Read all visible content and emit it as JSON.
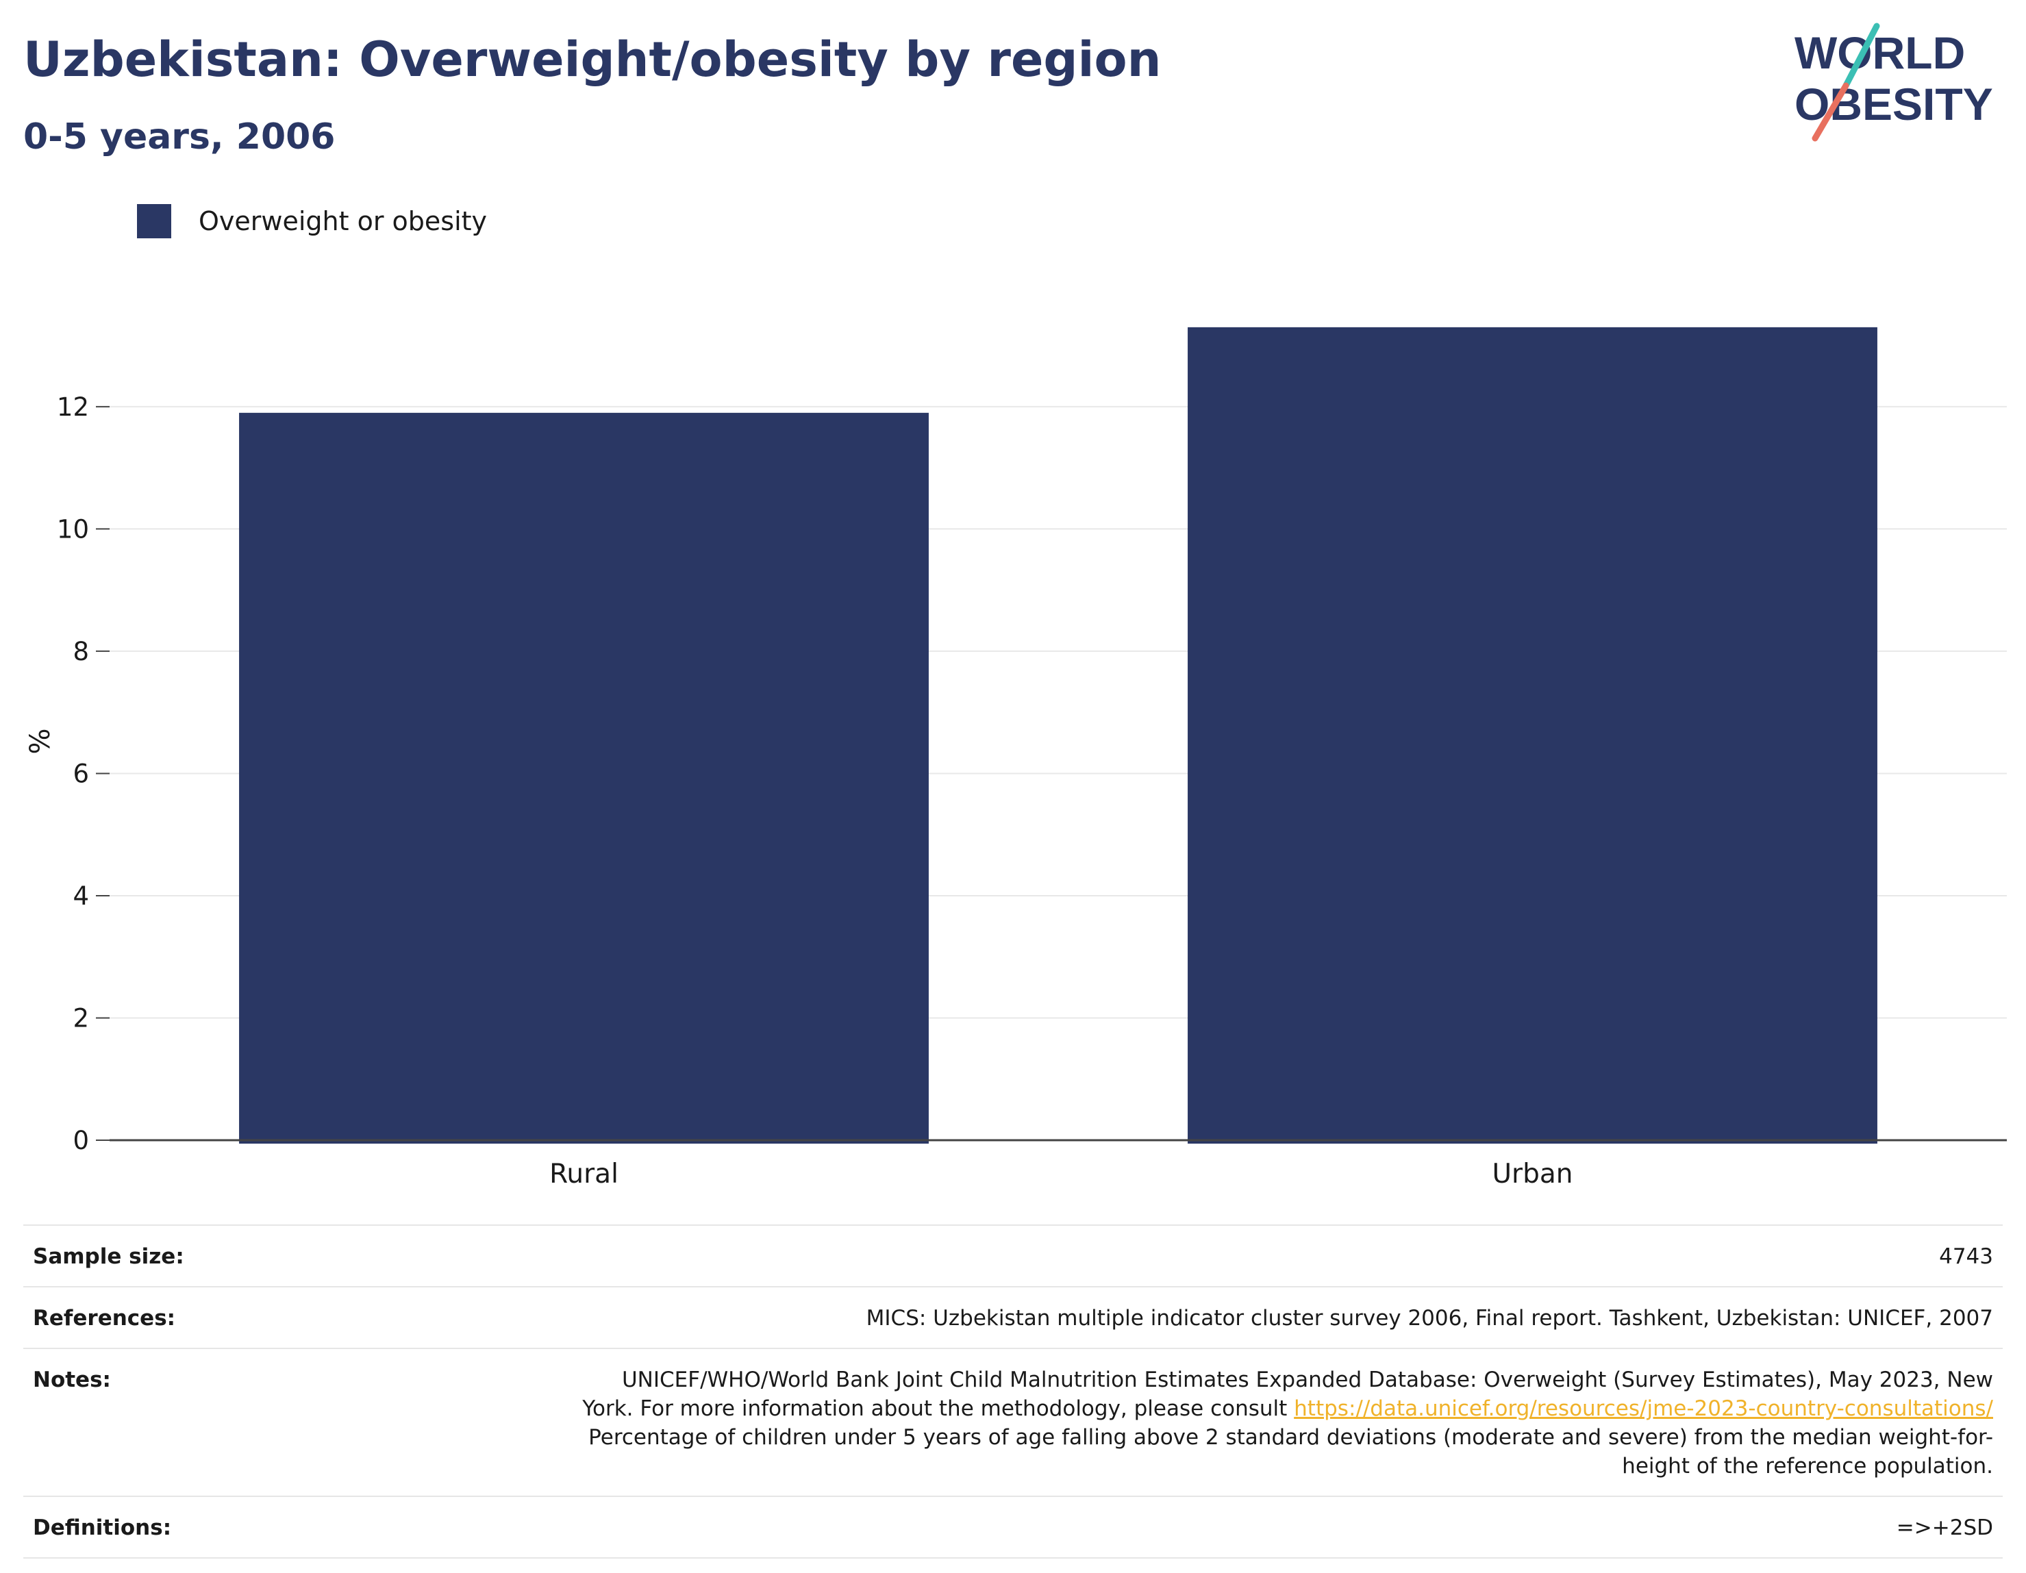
{
  "header": {
    "title": "Uzbekistan: Overweight/obesity by region",
    "subtitle": "0-5 years, 2006"
  },
  "logo": {
    "line1": "WORLD",
    "line2": "OBESITY",
    "colors": {
      "text": "#2a3764",
      "slash_top": "#3bbfb4",
      "slash_bottom": "#e8705f"
    }
  },
  "legend": {
    "items": [
      {
        "label": "Overweight or obesity",
        "color": "#2a3764"
      }
    ]
  },
  "chart_data": {
    "type": "bar",
    "categories": [
      "Rural",
      "Urban"
    ],
    "series": [
      {
        "name": "Overweight or obesity",
        "values": [
          11.9,
          13.3
        ],
        "color": "#2a3764"
      }
    ],
    "ylabel": "%",
    "ylim": [
      0,
      13.5
    ],
    "yticks": [
      0,
      2,
      4,
      6,
      8,
      10,
      12
    ],
    "grid": true,
    "legend_position": "top-left"
  },
  "table": {
    "sample_size": {
      "label": "Sample size:",
      "value": "4743"
    },
    "references": {
      "label": "References:",
      "value": "MICS: Uzbekistan multiple indicator cluster survey 2006, Final report. Tashkent, Uzbekistan: UNICEF, 2007"
    },
    "notes": {
      "label": "Notes:",
      "text_before": "UNICEF/WHO/World Bank Joint Child Malnutrition Estimates Expanded Database: Overweight (Survey Estimates), May 2023, New York. For more information about the methodology, please consult ",
      "link": "https://data.unicef.org/resources/jme-2023-country-consultations/",
      "text_after": " Percentage of children under 5 years of age falling above 2 standard deviations (moderate and severe) from the median weight-for-height of the reference population."
    },
    "definitions": {
      "label": "Definitions:",
      "value": "=>+2SD"
    }
  }
}
